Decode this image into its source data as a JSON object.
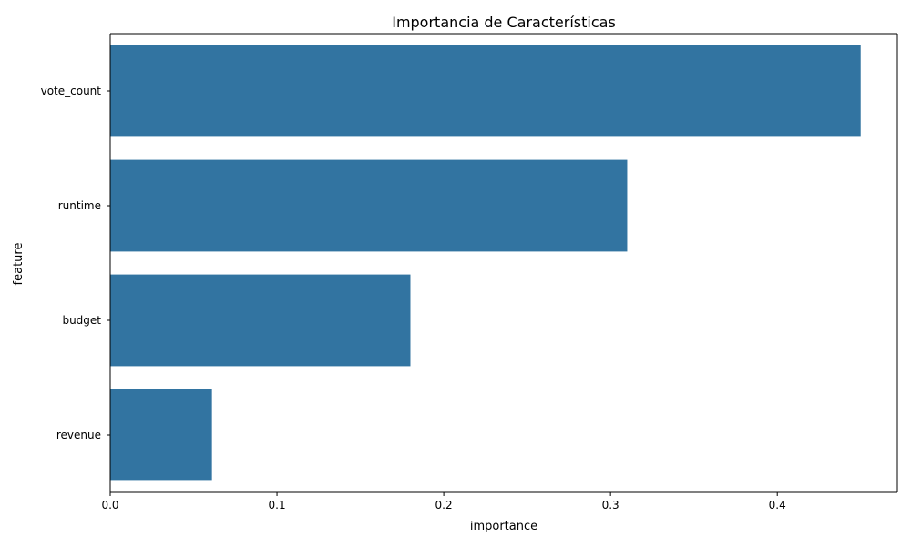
{
  "chart_data": {
    "type": "bar",
    "orientation": "horizontal",
    "title": "Importancia de Características",
    "xlabel": "importance",
    "ylabel": "feature",
    "categories": [
      "vote_count",
      "runtime",
      "budget",
      "revenue"
    ],
    "values": [
      0.45,
      0.31,
      0.18,
      0.061
    ],
    "xlim": [
      0,
      0.472
    ],
    "xticks": [
      0.0,
      0.1,
      0.2,
      0.3,
      0.4
    ],
    "xtick_labels": [
      "0.0",
      "0.1",
      "0.2",
      "0.3",
      "0.4"
    ],
    "grid": false,
    "legend": "none",
    "bar_color": "#3274a1"
  }
}
